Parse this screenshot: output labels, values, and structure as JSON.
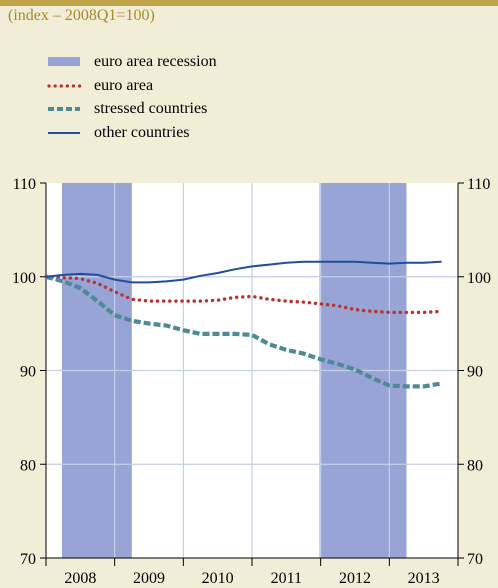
{
  "chart_data": {
    "type": "line",
    "title": "",
    "subtitle": "(index – 2008Q1=100)",
    "xlabel": "",
    "ylabel": "",
    "ylim": [
      70,
      110
    ],
    "yticks": [
      "70",
      "80",
      "90",
      "100",
      "110"
    ],
    "xticks": [
      "2008",
      "2009",
      "2010",
      "2011",
      "2012",
      "2013"
    ],
    "legend_position": "top-left",
    "grid": true,
    "recession_periods": [
      {
        "start": 2008.0,
        "end": 2009.25
      },
      {
        "start": 2011.75,
        "end": 2013.25
      }
    ],
    "series": [
      {
        "name": "euro area recession",
        "kind": "shading",
        "color": "#98a4d6"
      },
      {
        "name": "euro area",
        "kind": "dotted",
        "color": "#b83230",
        "x": [
          2008.0,
          2008.25,
          2008.5,
          2008.75,
          2009.0,
          2009.25,
          2009.5,
          2009.75,
          2010.0,
          2010.25,
          2010.5,
          2010.75,
          2011.0,
          2011.25,
          2011.5,
          2011.75,
          2012.0,
          2012.25,
          2012.5,
          2012.75,
          2013.0,
          2013.25,
          2013.5,
          2013.75
        ],
        "values": [
          100.0,
          99.9,
          99.8,
          99.3,
          98.4,
          97.6,
          97.4,
          97.4,
          97.4,
          97.4,
          97.5,
          97.8,
          97.9,
          97.6,
          97.4,
          97.3,
          97.1,
          96.9,
          96.5,
          96.3,
          96.2,
          96.2,
          96.2,
          96.3
        ]
      },
      {
        "name": "stressed countries",
        "kind": "dashed",
        "color": "#4e8a96",
        "x": [
          2008.0,
          2008.25,
          2008.5,
          2008.75,
          2009.0,
          2009.25,
          2009.5,
          2009.75,
          2010.0,
          2010.25,
          2010.5,
          2010.75,
          2011.0,
          2011.25,
          2011.5,
          2011.75,
          2012.0,
          2012.25,
          2012.5,
          2012.75,
          2013.0,
          2013.25,
          2013.5,
          2013.75
        ],
        "values": [
          100.0,
          99.5,
          98.8,
          97.4,
          95.9,
          95.3,
          95.0,
          94.8,
          94.3,
          93.9,
          93.9,
          93.9,
          93.8,
          92.8,
          92.2,
          91.8,
          91.2,
          90.7,
          90.1,
          89.2,
          88.4,
          88.3,
          88.3,
          88.6
        ]
      },
      {
        "name": "other countries",
        "kind": "solid",
        "color": "#1f4e9e",
        "x": [
          2008.0,
          2008.25,
          2008.5,
          2008.75,
          2009.0,
          2009.25,
          2009.5,
          2009.75,
          2010.0,
          2010.25,
          2010.5,
          2010.75,
          2011.0,
          2011.25,
          2011.5,
          2011.75,
          2012.0,
          2012.25,
          2012.5,
          2012.75,
          2013.0,
          2013.25,
          2013.5,
          2013.75
        ],
        "values": [
          100.0,
          100.2,
          100.3,
          100.2,
          99.7,
          99.4,
          99.4,
          99.5,
          99.7,
          100.1,
          100.4,
          100.8,
          101.1,
          101.3,
          101.5,
          101.6,
          101.6,
          101.6,
          101.6,
          101.5,
          101.4,
          101.5,
          101.5,
          101.6
        ]
      }
    ]
  }
}
